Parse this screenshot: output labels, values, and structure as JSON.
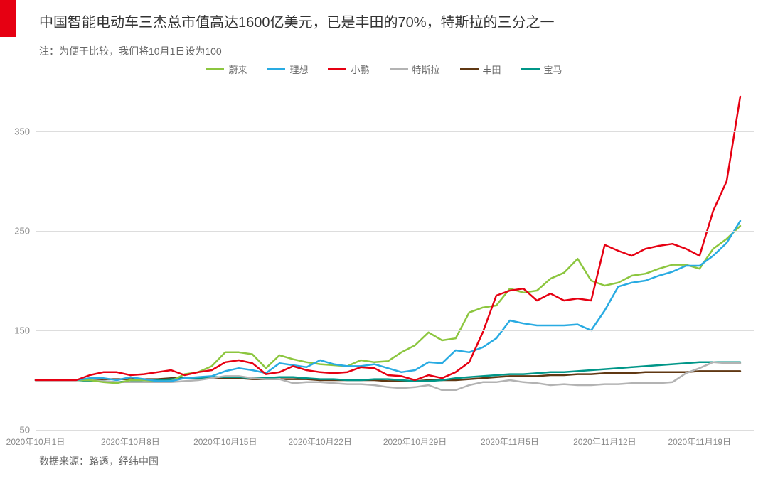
{
  "title": "中国智能电动车三杰总市值高达1600亿美元，已是丰田的70%，特斯拉的三分之一",
  "note": "注：为便于比较，我们将10月1日设为100",
  "source": "数据来源：路透，经纬中国",
  "legend_order": [
    "nio",
    "li",
    "xpeng",
    "tesla",
    "toyota",
    "bmw"
  ],
  "series": {
    "nio": {
      "label": "蔚来",
      "color": "#8cc63f"
    },
    "li": {
      "label": "理想",
      "color": "#29abe2"
    },
    "xpeng": {
      "label": "小鹏",
      "color": "#e60012"
    },
    "tesla": {
      "label": "特斯拉",
      "color": "#b3b3b3"
    },
    "toyota": {
      "label": "丰田",
      "color": "#603813"
    },
    "bmw": {
      "label": "宝马",
      "color": "#009688"
    }
  },
  "chart": {
    "type": "line",
    "ylim": [
      50,
      400
    ],
    "yticks": [
      50,
      150,
      250,
      350
    ],
    "gridline_color": "#dddddd",
    "background_color": "#ffffff",
    "line_width": 2.5,
    "x_categories": [
      "2020年10月1日",
      "",
      "",
      "",
      "",
      "",
      "",
      "2020年10月8日",
      "",
      "",
      "",
      "",
      "",
      "",
      "2020年10月15日",
      "",
      "",
      "",
      "",
      "",
      "",
      "2020年10月22日",
      "",
      "",
      "",
      "",
      "",
      "",
      "2020年10月29日",
      "",
      "",
      "",
      "",
      "",
      "",
      "2020年11月5日",
      "",
      "",
      "",
      "",
      "",
      "",
      "2020年11月12日",
      "",
      "",
      "",
      "",
      "",
      "",
      "2020年11月19日",
      "",
      "",
      "",
      ""
    ],
    "x_label_indices": [
      0,
      7,
      14,
      21,
      28,
      35,
      42,
      49
    ],
    "data": {
      "nio": [
        100,
        100,
        100,
        100,
        100,
        98,
        97,
        100,
        100,
        99,
        99,
        106,
        108,
        114,
        128,
        128,
        126,
        112,
        125,
        121,
        118,
        116,
        115,
        114,
        120,
        118,
        119,
        128,
        135,
        148,
        140,
        142,
        168,
        173,
        175,
        192,
        188,
        190,
        202,
        208,
        222,
        200,
        195,
        198,
        205,
        207,
        212,
        216,
        216,
        212,
        232,
        242,
        255
      ],
      "li": [
        100,
        100,
        100,
        100,
        102,
        102,
        100,
        103,
        101,
        99,
        99,
        102,
        103,
        104,
        109,
        112,
        110,
        107,
        117,
        115,
        113,
        120,
        116,
        114,
        114,
        116,
        112,
        108,
        110,
        118,
        117,
        130,
        128,
        133,
        142,
        160,
        157,
        155,
        155,
        155,
        156,
        150,
        170,
        194,
        198,
        200,
        205,
        209,
        215,
        215,
        225,
        238,
        260
      ],
      "xpeng": [
        100,
        100,
        100,
        100,
        105,
        108,
        108,
        105,
        106,
        108,
        110,
        105,
        108,
        110,
        118,
        120,
        117,
        106,
        108,
        114,
        110,
        108,
        107,
        108,
        113,
        112,
        105,
        104,
        100,
        105,
        102,
        108,
        118,
        148,
        185,
        190,
        192,
        180,
        187,
        180,
        182,
        180,
        236,
        230,
        225,
        232,
        235,
        237,
        232,
        225,
        270,
        300,
        385
      ],
      "tesla": [
        100,
        100,
        100,
        100,
        100,
        99,
        98,
        98,
        98,
        98,
        98,
        99,
        100,
        102,
        104,
        104,
        102,
        101,
        101,
        97,
        98,
        98,
        97,
        96,
        96,
        95,
        93,
        92,
        93,
        95,
        90,
        90,
        95,
        98,
        98,
        100,
        98,
        97,
        95,
        96,
        95,
        95,
        96,
        96,
        97,
        97,
        97,
        98,
        107,
        112,
        118,
        117,
        117
      ],
      "toyota": [
        100,
        100,
        100,
        100,
        100,
        101,
        101,
        101,
        101,
        101,
        102,
        102,
        102,
        102,
        102,
        102,
        101,
        101,
        101,
        101,
        101,
        100,
        100,
        100,
        100,
        100,
        99,
        99,
        99,
        100,
        100,
        100,
        101,
        102,
        103,
        104,
        104,
        104,
        105,
        105,
        106,
        106,
        107,
        107,
        107,
        108,
        108,
        108,
        108,
        109,
        109,
        109,
        109
      ],
      "bmw": [
        100,
        100,
        100,
        100,
        99,
        99,
        98,
        99,
        100,
        100,
        101,
        102,
        102,
        103,
        103,
        103,
        102,
        102,
        103,
        103,
        102,
        101,
        101,
        100,
        100,
        101,
        101,
        100,
        99,
        99,
        100,
        102,
        103,
        104,
        105,
        106,
        106,
        107,
        108,
        108,
        109,
        110,
        111,
        112,
        113,
        114,
        115,
        116,
        117,
        118,
        118,
        118,
        118
      ]
    }
  }
}
